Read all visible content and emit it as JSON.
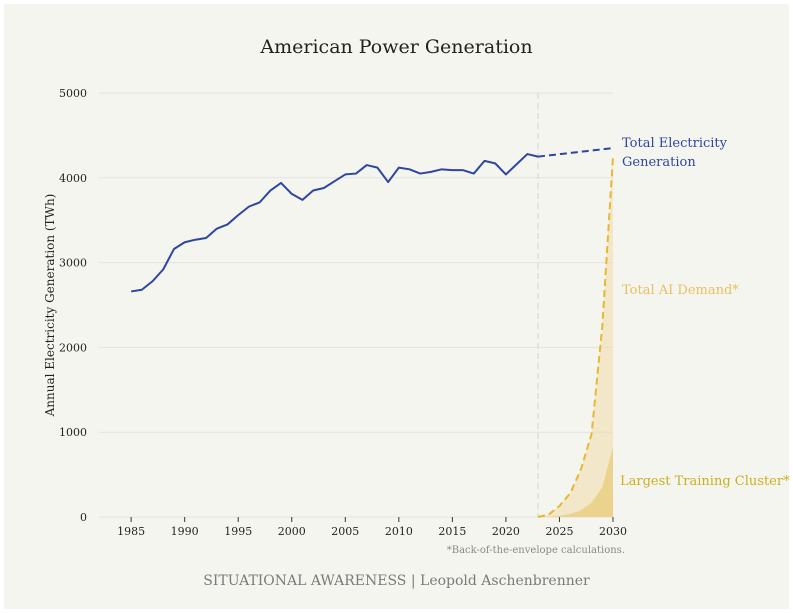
{
  "chart_data": {
    "type": "line",
    "title": "American Power Generation",
    "ylabel": "Annual Electricity Generation (TWh)",
    "xlabel": "",
    "xlim": [
      1982,
      2030
    ],
    "ylim": [
      0,
      5000
    ],
    "x_ticks": [
      1985,
      1990,
      1995,
      2000,
      2005,
      2010,
      2015,
      2020,
      2025,
      2030
    ],
    "y_ticks": [
      0,
      1000,
      2000,
      3000,
      4000,
      5000
    ],
    "grid": "horizontal",
    "vertical_reference_line": 2023,
    "series": [
      {
        "name": "Total Electricity Generation",
        "color": "#2e46a0",
        "style": "solid",
        "x": [
          1985,
          1986,
          1987,
          1988,
          1989,
          1990,
          1991,
          1992,
          1993,
          1994,
          1995,
          1996,
          1997,
          1998,
          1999,
          2000,
          2001,
          2002,
          2003,
          2004,
          2005,
          2006,
          2007,
          2008,
          2009,
          2010,
          2011,
          2012,
          2013,
          2014,
          2015,
          2016,
          2017,
          2018,
          2019,
          2020,
          2021,
          2022,
          2023
        ],
        "y": [
          2660,
          2680,
          2780,
          2920,
          3160,
          3240,
          3270,
          3290,
          3400,
          3450,
          3560,
          3660,
          3710,
          3850,
          3940,
          3810,
          3740,
          3850,
          3880,
          3960,
          4040,
          4050,
          4150,
          4120,
          3950,
          4120,
          4100,
          4050,
          4070,
          4100,
          4090,
          4090,
          4050,
          4200,
          4170,
          4040,
          4160,
          4280,
          4250
        ]
      },
      {
        "name": "Total Electricity Generation (projection)",
        "color": "#2e46a0",
        "style": "dashed",
        "x": [
          2023,
          2030
        ],
        "y": [
          4250,
          4350
        ]
      },
      {
        "name": "Total AI Demand*",
        "color": "#e8b830",
        "style": "dashed",
        "x": [
          2023,
          2024,
          2025,
          2026,
          2027,
          2028,
          2029,
          2030
        ],
        "y": [
          0,
          30,
          130,
          280,
          560,
          980,
          2250,
          4250
        ]
      },
      {
        "name": "Largest Training Cluster*",
        "color": "#e8c870",
        "style": "area",
        "x": [
          2023,
          2024,
          2025,
          2026,
          2027,
          2028,
          2029,
          2030
        ],
        "y": [
          0,
          5,
          15,
          35,
          80,
          170,
          350,
          830
        ]
      }
    ],
    "annotations": {
      "total_generation_line1": "Total Electricity",
      "total_generation_line2": "Generation",
      "ai_demand": "Total AI Demand*",
      "training_cluster": "Largest Training Cluster*",
      "footnote": "*Back-of-the-envelope calculations."
    }
  },
  "footer": "SITUATIONAL AWARENESS | Leopold Aschenbrenner",
  "colors": {
    "background": "#f5f5f0",
    "generation": "#2e46a0",
    "ai_demand": "#e8b830",
    "ai_label": "#e8c060",
    "cluster_label": "#c9b020",
    "reference_line": "#dddddd"
  }
}
